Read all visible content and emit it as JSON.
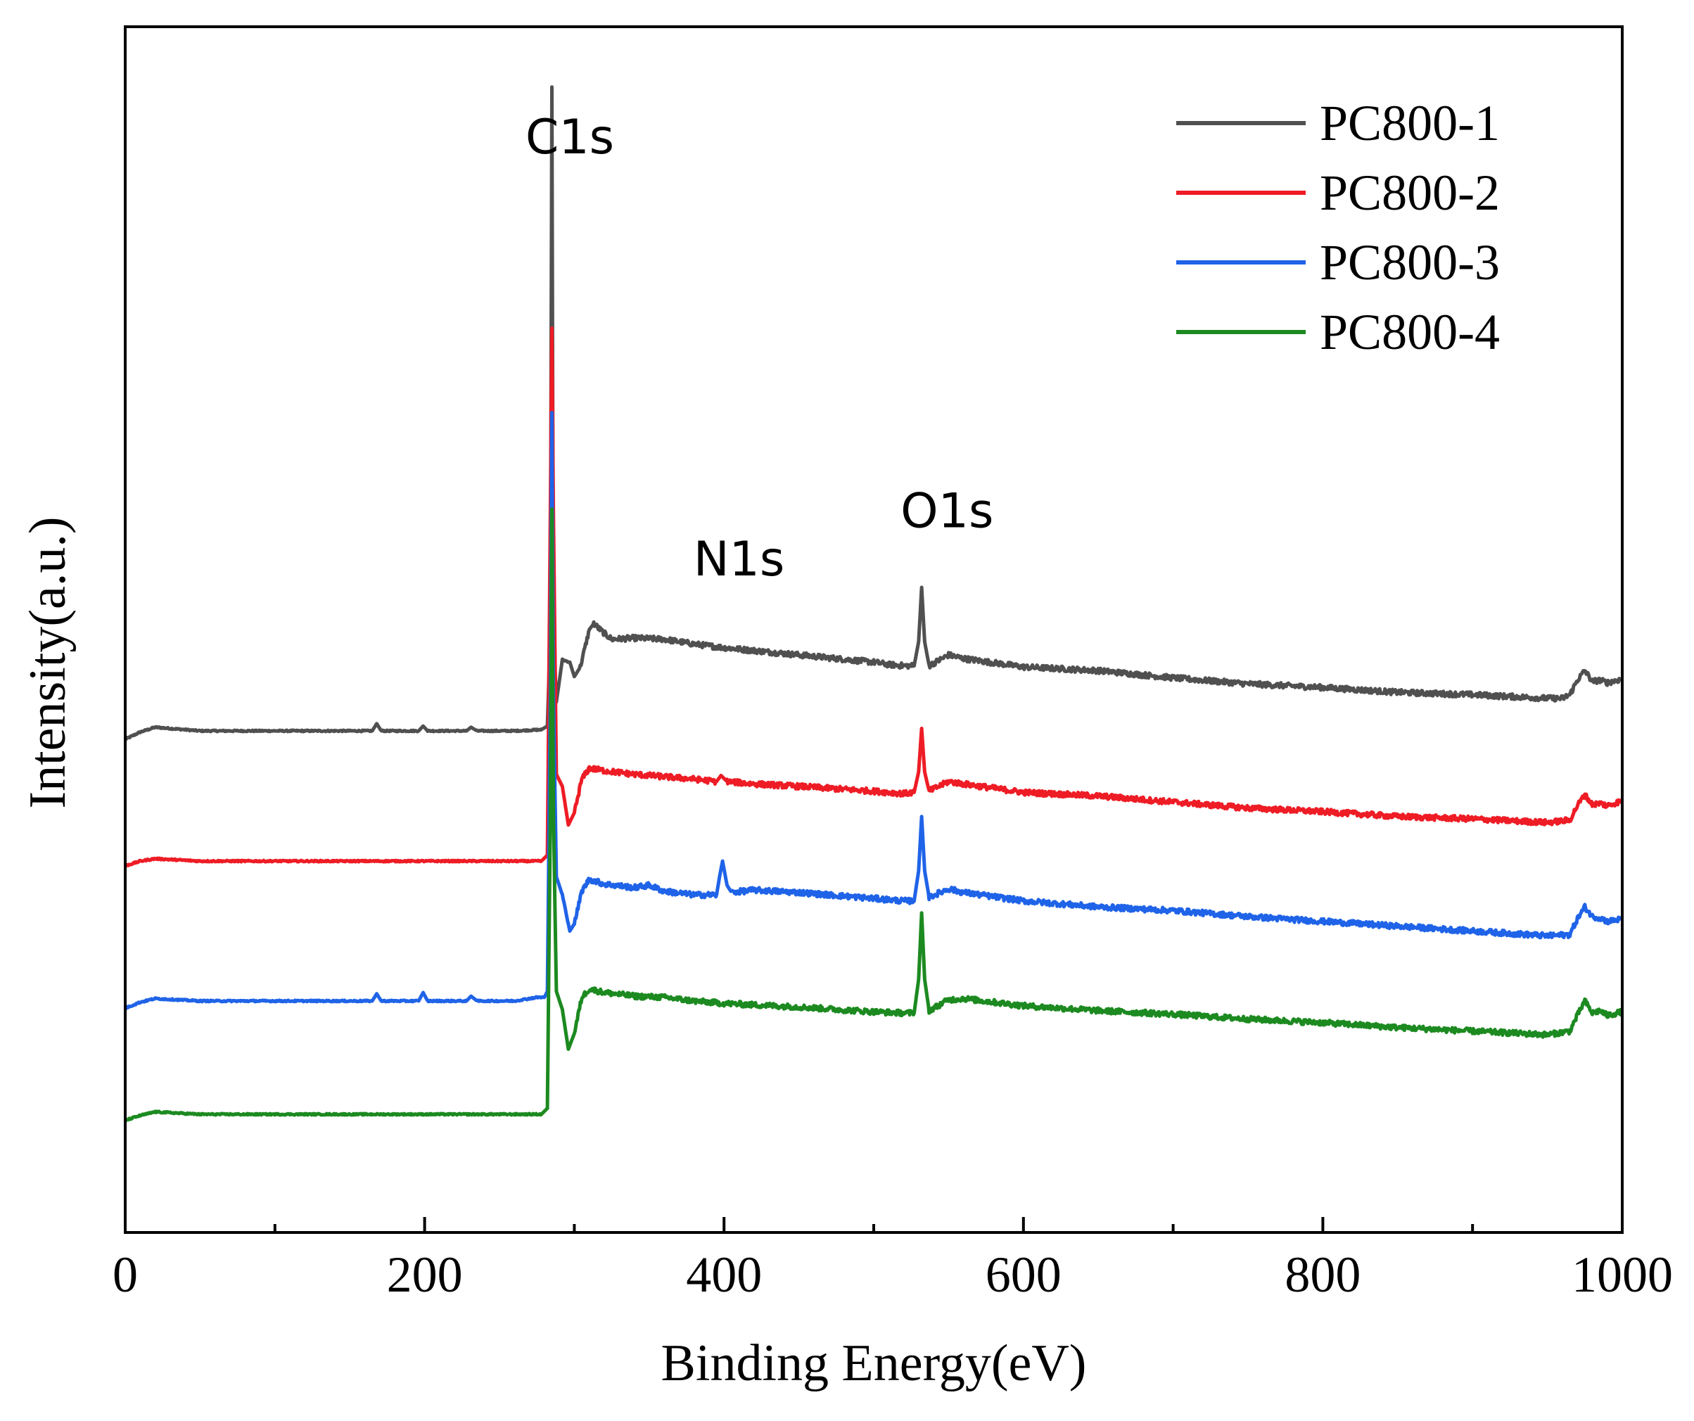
{
  "chart_data": {
    "type": "line",
    "title": "",
    "xlabel": "Binding Energy(eV)",
    "ylabel": "Intensity(a.u.)",
    "xlim": [
      0,
      1000
    ],
    "ylim": [
      0,
      100
    ],
    "xticks": [
      0,
      200,
      400,
      600,
      800,
      1000
    ],
    "xtick_labels": [
      "0",
      "200",
      "400",
      "600",
      "800",
      "1000"
    ],
    "y_ticks_shown": false,
    "legend_position": "top-right",
    "annotations": [
      {
        "text": "C1s",
        "x": 297,
        "y": 89.5
      },
      {
        "text": "N1s",
        "x": 410,
        "y": 54.5
      },
      {
        "text": "O1s",
        "x": 549,
        "y": 58.5
      }
    ],
    "series": [
      {
        "name": "PC800-1",
        "color": "#505050",
        "points": [
          [
            0,
            40.9
          ],
          [
            10,
            41.5
          ],
          [
            20,
            41.9
          ],
          [
            50,
            41.6
          ],
          [
            100,
            41.6
          ],
          [
            150,
            41.6
          ],
          [
            165,
            41.6
          ],
          [
            168,
            42.2
          ],
          [
            171,
            41.6
          ],
          [
            196,
            41.6
          ],
          [
            199,
            42.0
          ],
          [
            202,
            41.6
          ],
          [
            228,
            41.6
          ],
          [
            231,
            41.9
          ],
          [
            235,
            41.6
          ],
          [
            260,
            41.6
          ],
          [
            278,
            41.7
          ],
          [
            282,
            42.0
          ],
          [
            284,
            50.0
          ],
          [
            285,
            95.0
          ],
          [
            286,
            50.0
          ],
          [
            288,
            44.0
          ],
          [
            292,
            47.5
          ],
          [
            297,
            47.3
          ],
          [
            300,
            46.1
          ],
          [
            304,
            46.9
          ],
          [
            310,
            50.0
          ],
          [
            313,
            50.5
          ],
          [
            318,
            49.9
          ],
          [
            325,
            49.2
          ],
          [
            340,
            49.3
          ],
          [
            360,
            49.2
          ],
          [
            380,
            48.8
          ],
          [
            400,
            48.5
          ],
          [
            450,
            47.9
          ],
          [
            500,
            47.3
          ],
          [
            510,
            47.1
          ],
          [
            520,
            47.0
          ],
          [
            527,
            47.0
          ],
          [
            530,
            49.0
          ],
          [
            532,
            53.5
          ],
          [
            534,
            49.0
          ],
          [
            537,
            47.0
          ],
          [
            550,
            47.9
          ],
          [
            560,
            47.6
          ],
          [
            600,
            46.9
          ],
          [
            650,
            46.6
          ],
          [
            700,
            46.0
          ],
          [
            750,
            45.5
          ],
          [
            800,
            45.2
          ],
          [
            850,
            44.8
          ],
          [
            900,
            44.6
          ],
          [
            950,
            44.3
          ],
          [
            960,
            44.3
          ],
          [
            965,
            44.6
          ],
          [
            970,
            45.8
          ],
          [
            975,
            46.6
          ],
          [
            980,
            45.7
          ],
          [
            985,
            45.8
          ],
          [
            990,
            45.6
          ],
          [
            1000,
            45.9
          ]
        ]
      },
      {
        "name": "PC800-2",
        "color": "#ee1c25",
        "points": [
          [
            0,
            30.4
          ],
          [
            10,
            30.8
          ],
          [
            20,
            31.0
          ],
          [
            50,
            30.8
          ],
          [
            100,
            30.8
          ],
          [
            150,
            30.8
          ],
          [
            200,
            30.8
          ],
          [
            250,
            30.8
          ],
          [
            270,
            30.8
          ],
          [
            278,
            30.8
          ],
          [
            282,
            31.3
          ],
          [
            284,
            60.0
          ],
          [
            285,
            75.0
          ],
          [
            286,
            60.0
          ],
          [
            288,
            38.0
          ],
          [
            292,
            37.0
          ],
          [
            296,
            33.8
          ],
          [
            300,
            34.8
          ],
          [
            305,
            37.6
          ],
          [
            310,
            38.5
          ],
          [
            320,
            38.3
          ],
          [
            340,
            38.0
          ],
          [
            360,
            37.8
          ],
          [
            380,
            37.6
          ],
          [
            395,
            37.4
          ],
          [
            398,
            37.9
          ],
          [
            402,
            37.4
          ],
          [
            420,
            37.2
          ],
          [
            450,
            37.0
          ],
          [
            500,
            36.6
          ],
          [
            520,
            36.4
          ],
          [
            527,
            36.5
          ],
          [
            530,
            38.2
          ],
          [
            532,
            41.8
          ],
          [
            534,
            38.2
          ],
          [
            537,
            36.6
          ],
          [
            550,
            37.4
          ],
          [
            560,
            37.2
          ],
          [
            600,
            36.5
          ],
          [
            650,
            36.2
          ],
          [
            700,
            35.7
          ],
          [
            750,
            35.2
          ],
          [
            800,
            34.9
          ],
          [
            850,
            34.5
          ],
          [
            900,
            34.3
          ],
          [
            950,
            34.0
          ],
          [
            965,
            34.2
          ],
          [
            970,
            35.4
          ],
          [
            975,
            36.3
          ],
          [
            980,
            35.5
          ],
          [
            985,
            35.6
          ],
          [
            990,
            35.4
          ],
          [
            1000,
            35.8
          ]
        ]
      },
      {
        "name": "PC800-3",
        "color": "#1f63e8",
        "points": [
          [
            0,
            18.6
          ],
          [
            10,
            19.1
          ],
          [
            20,
            19.4
          ],
          [
            50,
            19.2
          ],
          [
            100,
            19.2
          ],
          [
            150,
            19.2
          ],
          [
            165,
            19.2
          ],
          [
            168,
            19.8
          ],
          [
            171,
            19.2
          ],
          [
            196,
            19.2
          ],
          [
            199,
            19.9
          ],
          [
            202,
            19.2
          ],
          [
            228,
            19.2
          ],
          [
            231,
            19.6
          ],
          [
            235,
            19.2
          ],
          [
            260,
            19.2
          ],
          [
            270,
            19.4
          ],
          [
            275,
            19.5
          ],
          [
            280,
            19.5
          ],
          [
            282,
            20.0
          ],
          [
            284,
            45.0
          ],
          [
            285,
            68.0
          ],
          [
            286,
            45.0
          ],
          [
            288,
            29.5
          ],
          [
            292,
            28.0
          ],
          [
            297,
            25.0
          ],
          [
            300,
            25.6
          ],
          [
            305,
            28.3
          ],
          [
            310,
            29.3
          ],
          [
            320,
            28.9
          ],
          [
            340,
            28.6
          ],
          [
            350,
            28.8
          ],
          [
            360,
            28.3
          ],
          [
            380,
            28.0
          ],
          [
            395,
            28.0
          ],
          [
            397,
            29.5
          ],
          [
            399,
            30.8
          ],
          [
            402,
            28.8
          ],
          [
            405,
            28.2
          ],
          [
            420,
            28.4
          ],
          [
            450,
            28.2
          ],
          [
            500,
            27.7
          ],
          [
            520,
            27.5
          ],
          [
            527,
            27.5
          ],
          [
            530,
            30.0
          ],
          [
            532,
            34.5
          ],
          [
            534,
            30.0
          ],
          [
            537,
            27.8
          ],
          [
            550,
            28.5
          ],
          [
            560,
            28.2
          ],
          [
            600,
            27.5
          ],
          [
            650,
            27.0
          ],
          [
            700,
            26.7
          ],
          [
            750,
            26.2
          ],
          [
            800,
            25.8
          ],
          [
            850,
            25.4
          ],
          [
            900,
            25.0
          ],
          [
            950,
            24.6
          ],
          [
            965,
            24.7
          ],
          [
            970,
            26.0
          ],
          [
            975,
            27.0
          ],
          [
            980,
            26.2
          ],
          [
            985,
            26.1
          ],
          [
            990,
            25.8
          ],
          [
            1000,
            26.0
          ]
        ]
      },
      {
        "name": "PC800-4",
        "color": "#1c8a20",
        "points": [
          [
            0,
            9.3
          ],
          [
            10,
            9.7
          ],
          [
            20,
            10.0
          ],
          [
            50,
            9.8
          ],
          [
            100,
            9.8
          ],
          [
            150,
            9.8
          ],
          [
            200,
            9.8
          ],
          [
            250,
            9.8
          ],
          [
            270,
            9.8
          ],
          [
            278,
            9.8
          ],
          [
            282,
            10.3
          ],
          [
            284,
            35.0
          ],
          [
            285,
            60.0
          ],
          [
            286,
            35.0
          ],
          [
            288,
            20.0
          ],
          [
            292,
            18.5
          ],
          [
            296,
            15.2
          ],
          [
            300,
            16.5
          ],
          [
            305,
            19.5
          ],
          [
            310,
            20.2
          ],
          [
            320,
            19.9
          ],
          [
            340,
            19.6
          ],
          [
            360,
            19.5
          ],
          [
            380,
            19.2
          ],
          [
            400,
            19.0
          ],
          [
            450,
            18.7
          ],
          [
            500,
            18.3
          ],
          [
            520,
            18.2
          ],
          [
            527,
            18.2
          ],
          [
            530,
            21.0
          ],
          [
            532,
            26.5
          ],
          [
            534,
            21.0
          ],
          [
            537,
            18.4
          ],
          [
            550,
            19.3
          ],
          [
            560,
            19.4
          ],
          [
            600,
            18.8
          ],
          [
            650,
            18.4
          ],
          [
            700,
            18.1
          ],
          [
            750,
            17.7
          ],
          [
            800,
            17.4
          ],
          [
            850,
            17.0
          ],
          [
            900,
            16.7
          ],
          [
            950,
            16.4
          ],
          [
            965,
            16.7
          ],
          [
            970,
            18.0
          ],
          [
            975,
            19.2
          ],
          [
            980,
            18.2
          ],
          [
            985,
            18.4
          ],
          [
            990,
            18.0
          ],
          [
            1000,
            18.3
          ]
        ]
      }
    ]
  }
}
